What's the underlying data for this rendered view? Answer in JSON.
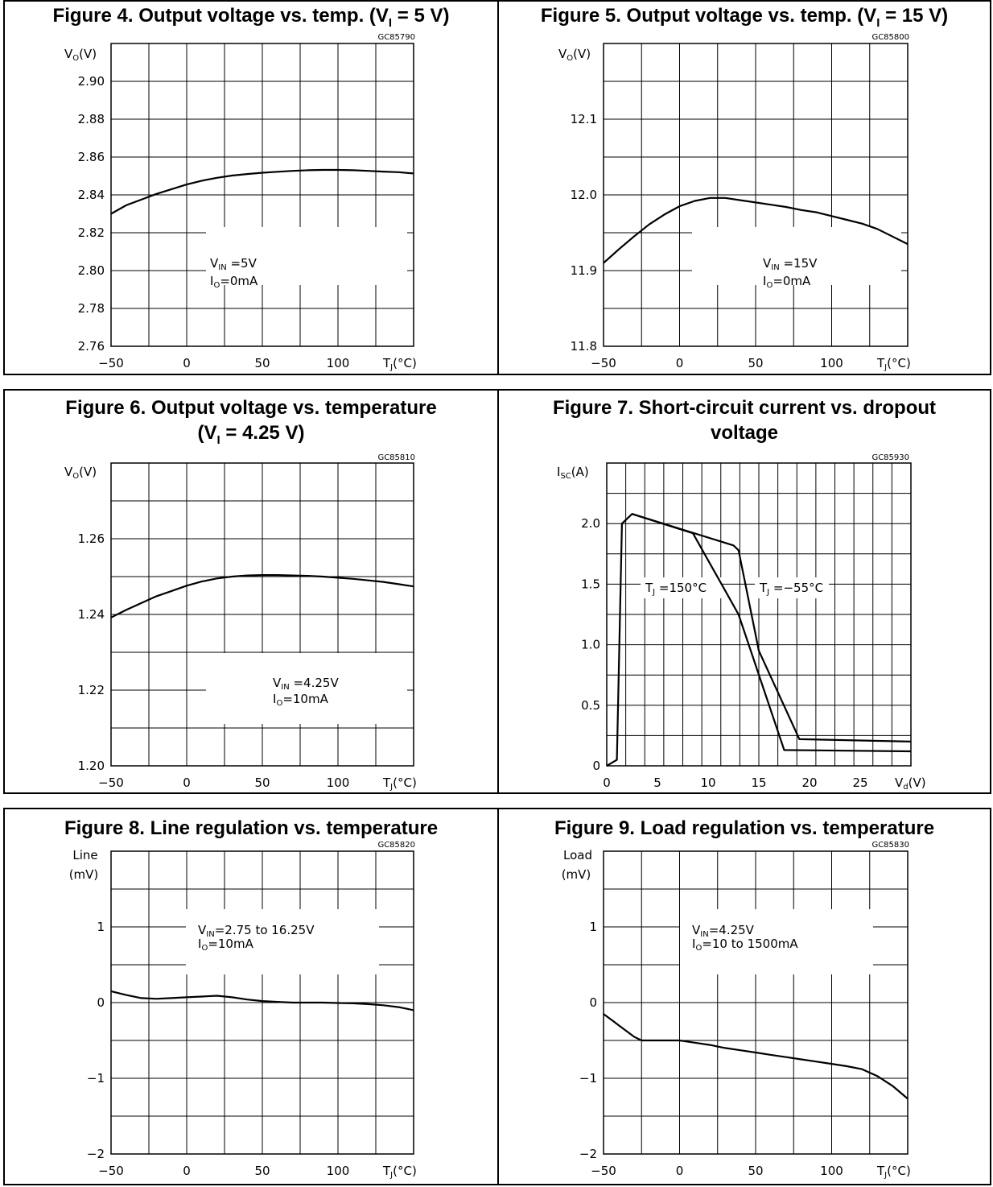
{
  "charts": [
    {
      "id": "fig4",
      "title_main": "Figure 4. Output voltage vs. temp. (V",
      "title_sub": "I",
      "title_tail": " = 5 V)",
      "title_line2": "",
      "code": "GC85790",
      "ylabel_main": "V",
      "ylabel_sub": "O",
      "ylabel_tail": "(V)",
      "ylabel_line2": "",
      "xunit_main": "T",
      "xunit_sub": "J",
      "xunit_tail": "(°C)",
      "xticks": [
        "−50",
        "0",
        "50",
        "100"
      ],
      "yticks": [
        "2.90",
        "2.88",
        "2.86",
        "2.84",
        "2.82",
        "2.80",
        "2.78",
        "2.76"
      ],
      "annotations": [
        {
          "main": "V",
          "sub": "IN",
          "tail": " =5V"
        },
        {
          "main": "I",
          "sub": "O",
          "tail": "=0mA"
        }
      ]
    },
    {
      "id": "fig5",
      "title_main": "Figure 5. Output voltage vs. temp. (V",
      "title_sub": "I",
      "title_tail": " = 15 V)",
      "title_line2": "",
      "code": "GC85800",
      "ylabel_main": "V",
      "ylabel_sub": "O",
      "ylabel_tail": "(V)",
      "ylabel_line2": "",
      "xunit_main": "T",
      "xunit_sub": "J",
      "xunit_tail": "(°C)",
      "xticks": [
        "−50",
        "0",
        "50",
        "100"
      ],
      "yticks": [
        "12.1",
        "12.0",
        "11.9",
        "11.8"
      ],
      "annotations": [
        {
          "main": "V",
          "sub": "IN",
          "tail": " =15V"
        },
        {
          "main": "I",
          "sub": "O",
          "tail": "=0mA"
        }
      ]
    },
    {
      "id": "fig6",
      "title_main": "Figure 6. Output voltage vs. temperature",
      "title_sub": "",
      "title_tail": "",
      "title_line2": "(V_I = 4.25 V)",
      "title_line2_main": "(V",
      "title_line2_sub": "I",
      "title_line2_tail": " = 4.25 V)",
      "code": "GC85810",
      "ylabel_main": "V",
      "ylabel_sub": "O",
      "ylabel_tail": "(V)",
      "ylabel_line2": "",
      "xunit_main": "T",
      "xunit_sub": "J",
      "xunit_tail": "(°C)",
      "xticks": [
        "−50",
        "0",
        "50",
        "100"
      ],
      "yticks": [
        "1.26",
        "1.24",
        "1.22",
        "1.20"
      ],
      "annotations": [
        {
          "main": "V",
          "sub": "IN",
          "tail": " =4.25V"
        },
        {
          "main": "I",
          "sub": "O",
          "tail": "=10mA"
        }
      ]
    },
    {
      "id": "fig7",
      "title_main": "Figure 7. Short-circuit current vs. dropout",
      "title_sub": "",
      "title_tail": "",
      "title_line2": "voltage",
      "code": "GC85930",
      "ylabel_main": "I",
      "ylabel_sub": "SC",
      "ylabel_tail": "(A)",
      "ylabel_line2": "",
      "xunit_main": "V",
      "xunit_sub": "d",
      "xunit_tail": "(V)",
      "xticks": [
        "0",
        "5",
        "10",
        "15",
        "20",
        "25"
      ],
      "yticks": [
        "2.0",
        "1.5",
        "1.0",
        "0.5",
        "0"
      ],
      "annotations": [
        {
          "main": "T",
          "sub": "J",
          "tail": " =150°C"
        },
        {
          "main": "T",
          "sub": "J",
          "tail": " =−55°C"
        }
      ]
    },
    {
      "id": "fig8",
      "title_main": "Figure 8. Line regulation vs. temperature",
      "title_sub": "",
      "title_tail": "",
      "title_line2": "",
      "code": "GC85820",
      "ylabel_main": "Line",
      "ylabel_sub": "",
      "ylabel_tail": "",
      "ylabel_line2": "(mV)",
      "xunit_main": "T",
      "xunit_sub": "J",
      "xunit_tail": "(°C)",
      "xticks": [
        "−50",
        "0",
        "50",
        "100"
      ],
      "yticks": [
        "1",
        "0",
        "−1",
        "−2"
      ],
      "annotations": [
        {
          "main": "V",
          "sub": "IN",
          "tail": "=2.75  to  16.25V"
        },
        {
          "main": "I",
          "sub": "O",
          "tail": "=10mA"
        }
      ]
    },
    {
      "id": "fig9",
      "title_main": "Figure 9. Load regulation vs. temperature",
      "title_sub": "",
      "title_tail": "",
      "title_line2": "",
      "code": "GC85830",
      "ylabel_main": "Load",
      "ylabel_sub": "",
      "ylabel_tail": "",
      "ylabel_line2": "(mV)",
      "xunit_main": "T",
      "xunit_sub": "J",
      "xunit_tail": "(°C)",
      "xticks": [
        "−50",
        "0",
        "50",
        "100"
      ],
      "yticks": [
        "1",
        "0",
        "−1",
        "−2"
      ],
      "annotations": [
        {
          "main": "V",
          "sub": "IN",
          "tail": "=4.25V"
        },
        {
          "main": "I",
          "sub": "O",
          "tail": "=10  to  1500mA"
        }
      ]
    }
  ],
  "chart_data": [
    {
      "type": "line",
      "x": [
        -50,
        -40,
        -30,
        -20,
        -10,
        0,
        10,
        20,
        30,
        40,
        50,
        60,
        70,
        80,
        90,
        100,
        110,
        120,
        130,
        140,
        150
      ],
      "series": [
        {
          "values": [
            2.83,
            2.8345,
            2.8375,
            2.8405,
            2.843,
            2.8455,
            2.8475,
            2.849,
            2.8502,
            2.851,
            2.8517,
            2.8522,
            2.8527,
            2.853,
            2.8532,
            2.8532,
            2.853,
            2.8527,
            2.8523,
            2.852,
            2.8513
          ]
        }
      ],
      "xlim": [
        -50,
        150
      ],
      "ylim": [
        2.76,
        2.92
      ]
    },
    {
      "type": "line",
      "x": [
        -50,
        -40,
        -30,
        -20,
        -10,
        0,
        10,
        20,
        30,
        40,
        50,
        60,
        70,
        80,
        90,
        100,
        110,
        120,
        130,
        140,
        150
      ],
      "series": [
        {
          "values": [
            11.91,
            11.928,
            11.945,
            11.961,
            11.974,
            11.985,
            11.992,
            11.996,
            11.996,
            11.993,
            11.99,
            11.987,
            11.984,
            11.98,
            11.977,
            11.972,
            11.967,
            11.962,
            11.955,
            11.945,
            11.935
          ]
        }
      ],
      "xlim": [
        -50,
        150
      ],
      "ylim": [
        11.8,
        12.2
      ]
    },
    {
      "type": "line",
      "x": [
        -50,
        -40,
        -30,
        -20,
        -10,
        0,
        10,
        20,
        30,
        40,
        50,
        60,
        70,
        80,
        90,
        100,
        110,
        120,
        130,
        140,
        150
      ],
      "series": [
        {
          "values": [
            1.2392,
            1.2412,
            1.243,
            1.2448,
            1.2462,
            1.2476,
            1.2487,
            1.2495,
            1.25,
            1.2503,
            1.2504,
            1.2504,
            1.2503,
            1.2502,
            1.25,
            1.2497,
            1.2494,
            1.249,
            1.2486,
            1.248,
            1.2474
          ]
        }
      ],
      "xlim": [
        -50,
        150
      ],
      "ylim": [
        1.2,
        1.28
      ]
    },
    {
      "type": "line",
      "series": [
        {
          "x": [
            0,
            1.0,
            1.5,
            2.5,
            8.5,
            13,
            17.5,
            30
          ],
          "values": [
            0.0,
            0.05,
            2.0,
            2.08,
            1.92,
            1.25,
            0.13,
            0.12
          ]
        },
        {
          "x": [
            2.5,
            12.5,
            13,
            15,
            19,
            30
          ],
          "values": [
            2.08,
            1.82,
            1.78,
            0.95,
            0.22,
            0.2
          ]
        }
      ],
      "xlim": [
        0,
        30
      ],
      "ylim": [
        0,
        2.5
      ]
    },
    {
      "type": "line",
      "x": [
        -50,
        -40,
        -30,
        -20,
        -10,
        0,
        10,
        20,
        30,
        40,
        50,
        60,
        70,
        80,
        90,
        100,
        110,
        120,
        130,
        140,
        150
      ],
      "series": [
        {
          "values": [
            0.15,
            0.1,
            0.06,
            0.05,
            0.06,
            0.07,
            0.08,
            0.09,
            0.07,
            0.04,
            0.02,
            0.01,
            0.0,
            0.0,
            0.0,
            -0.005,
            -0.01,
            -0.02,
            -0.035,
            -0.06,
            -0.1
          ]
        }
      ],
      "xlim": [
        -50,
        150
      ],
      "ylim": [
        -2,
        2
      ]
    },
    {
      "type": "line",
      "x": [
        -50,
        -40,
        -30,
        -25,
        -20,
        -10,
        0,
        10,
        20,
        30,
        40,
        50,
        60,
        70,
        80,
        90,
        100,
        110,
        120,
        130,
        140,
        150
      ],
      "series": [
        {
          "values": [
            -0.15,
            -0.3,
            -0.45,
            -0.5,
            -0.5,
            -0.5,
            -0.5,
            -0.53,
            -0.56,
            -0.6,
            -0.63,
            -0.66,
            -0.69,
            -0.72,
            -0.75,
            -0.78,
            -0.81,
            -0.84,
            -0.88,
            -0.97,
            -1.1,
            -1.27
          ]
        }
      ],
      "xlim": [
        -50,
        150
      ],
      "ylim": [
        -2,
        2
      ]
    }
  ]
}
